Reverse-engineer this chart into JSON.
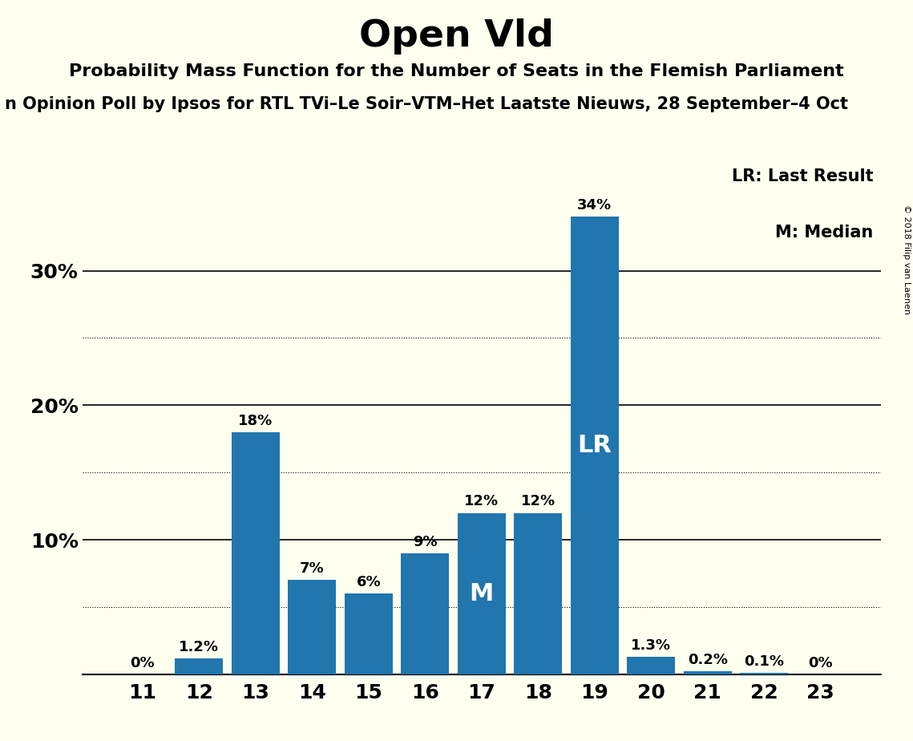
{
  "title": "Open Vld",
  "subtitle": "Probability Mass Function for the Number of Seats in the Flemish Parliament",
  "poll_label": "n Opinion Poll by Ipsos for RTL TVi–Le Soir–VTM–Het Laatste Nieuws, 28 September–4 Oct",
  "copyright": "© 2018 Filip van Laenen",
  "categories": [
    11,
    12,
    13,
    14,
    15,
    16,
    17,
    18,
    19,
    20,
    21,
    22,
    23
  ],
  "values": [
    0.0,
    1.2,
    18.0,
    7.0,
    6.0,
    9.0,
    12.0,
    12.0,
    34.0,
    1.3,
    0.2,
    0.1,
    0.0
  ],
  "labels": [
    "0%",
    "1.2%",
    "18%",
    "7%",
    "6%",
    "9%",
    "12%",
    "12%",
    "34%",
    "1.3%",
    "0.2%",
    "0.1%",
    "0%"
  ],
  "bar_color": "#2176AE",
  "background_color": "#FFFFF0",
  "lr_bar": 19,
  "median_bar": 17,
  "lr_label": "LR",
  "median_label": "M",
  "legend_lr": "LR: Last Result",
  "legend_m": "M: Median",
  "ylim": [
    0,
    38
  ],
  "dotted_lines": [
    5,
    15,
    25
  ],
  "solid_lines": [
    10,
    20,
    30
  ],
  "title_fontsize": 34,
  "subtitle_fontsize": 16,
  "poll_fontsize": 15,
  "bar_label_fontsize": 13,
  "axis_tick_fontsize": 18,
  "legend_fontsize": 15,
  "inner_label_fontsize": 22
}
